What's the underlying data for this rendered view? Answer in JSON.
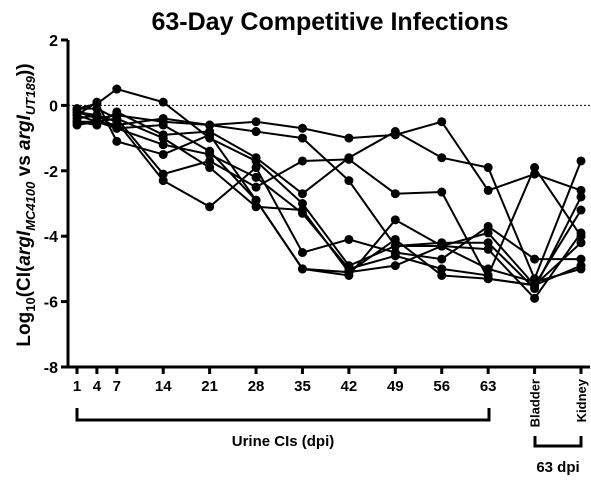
{
  "chart_data": {
    "type": "line",
    "title": "63-Day Competitive Infections",
    "ylabel": [
      "Log",
      "10",
      "(CI(",
      "argI",
      "MC4100",
      " vs ",
      "argI",
      "UT189",
      "))"
    ],
    "categories": [
      "1",
      "4",
      "7",
      "14",
      "21",
      "28",
      "35",
      "42",
      "49",
      "56",
      "63",
      "Bladder",
      "Kidney"
    ],
    "annotations": [
      "Urine CIs (dpi)",
      "63 dpi"
    ],
    "color": "#000000",
    "series": [
      {
        "values": [
          -0.1,
          0.05,
          0.5,
          0.1,
          -1.0,
          -1.7,
          -3.0,
          -4.9,
          -4.3,
          -4.3,
          -3.9,
          -5.5,
          -4.2
        ]
      },
      {
        "values": [
          -0.2,
          -0.4,
          -0.3,
          -0.5,
          -0.6,
          -0.5,
          -0.7,
          -1.0,
          -0.9,
          -0.5,
          -2.6,
          -2.1,
          -2.6
        ]
      },
      {
        "values": [
          -0.3,
          -0.5,
          -0.6,
          -0.4,
          -0.6,
          -0.8,
          -1.0,
          -2.3,
          -4.3,
          -4.2,
          -4.2,
          -5.6,
          -2.8
        ]
      },
      {
        "values": [
          -0.5,
          -0.6,
          -0.2,
          -0.9,
          -0.8,
          -1.6,
          -2.7,
          -1.6,
          -0.8,
          -1.6,
          -1.9,
          -5.3,
          -1.7
        ]
      },
      {
        "values": [
          -0.4,
          -0.3,
          -0.7,
          -1.2,
          -1.5,
          -2.2,
          -3.3,
          -5.0,
          -4.6,
          -5.0,
          -5.2,
          -1.9,
          -4.0
        ]
      },
      {
        "values": [
          -0.6,
          -0.5,
          -0.4,
          -2.1,
          -1.7,
          -2.5,
          -1.7,
          -1.65,
          -2.7,
          -2.65,
          -5.3,
          -5.5,
          -3.2
        ]
      },
      {
        "values": [
          -0.2,
          -0.3,
          -0.5,
          -2.3,
          -3.1,
          -1.9,
          -4.5,
          -4.1,
          -4.5,
          -4.7,
          -3.7,
          -4.7,
          -4.7
        ]
      },
      {
        "values": [
          -0.1,
          -0.1,
          -0.4,
          -1.0,
          -1.9,
          -3.1,
          -3.2,
          -5.1,
          -4.9,
          -4.3,
          -4.4,
          -5.9,
          -3.9
        ]
      },
      {
        "values": [
          -0.5,
          -0.5,
          -0.7,
          -0.6,
          -1.4,
          -2.9,
          -5.0,
          -5.2,
          -3.5,
          -4.3,
          -5.0,
          -5.4,
          -5.0
        ]
      },
      {
        "values": [
          -0.3,
          0.1,
          -1.1,
          -1.5,
          -0.9,
          -2.9,
          -5.0,
          -5.1,
          -4.1,
          -5.2,
          -5.3,
          -5.5,
          -4.9
        ]
      }
    ],
    "ylim": [
      -8,
      2
    ],
    "yticks": [
      -8,
      -6,
      -4,
      -2,
      0,
      2
    ],
    "reference_line": 0
  }
}
